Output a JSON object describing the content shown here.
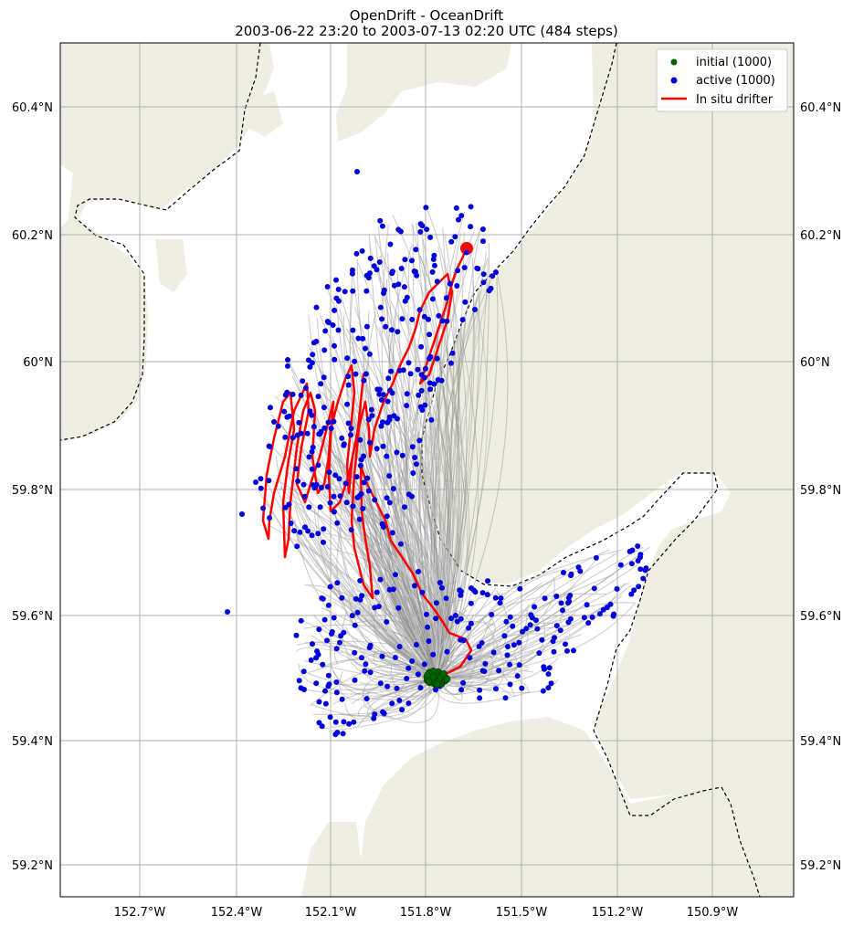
{
  "title": "OpenDrift - OceanDrift",
  "subtitle": "2003-06-22 23:20 to 2003-07-13 02:20 UTC (484 steps)",
  "axes": {
    "lon_ticks": [
      "152.7°W",
      "152.4°W",
      "152.1°W",
      "151.8°W",
      "151.5°W",
      "151.2°W",
      "150.9°W"
    ],
    "lat_ticks": [
      "60.4°N",
      "60.2°N",
      "60°N",
      "59.8°N",
      "59.6°N",
      "59.4°N",
      "59.2°N"
    ]
  },
  "legend": {
    "placement": "top-right",
    "items": [
      {
        "label": "initial (1000)",
        "color": "#006400",
        "marker": "dot"
      },
      {
        "label": "active (1000)",
        "color": "#0000dd",
        "marker": "dot"
      },
      {
        "label": "In situ drifter",
        "color": "#ff0000",
        "marker": "line"
      }
    ]
  },
  "colors": {
    "land": "#eeeee2",
    "water": "#ffffff",
    "trajectory": "#8c8c8c",
    "initial": "#006400",
    "active": "#0000dd",
    "drifter": "#ff0000",
    "grid": "#b0b0b0"
  },
  "map": {
    "lon_range": [
      -152.95,
      -150.65
    ],
    "lat_range": [
      59.15,
      60.5
    ],
    "grid": true,
    "drifter_end": {
      "lon": -151.66,
      "lat": 60.18
    },
    "seed_center": {
      "lon": -151.77,
      "lat": 59.5
    }
  }
}
